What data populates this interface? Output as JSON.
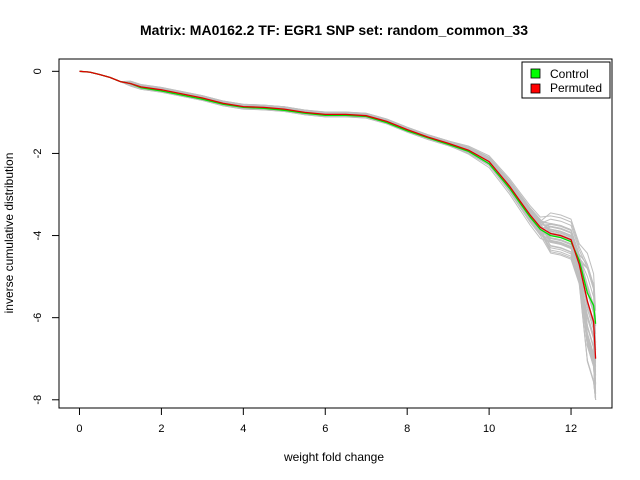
{
  "chart_data": {
    "type": "line",
    "title": "Matrix: MA0162.2 TF: EGR1 SNP set: random_common_33",
    "xlabel": "weight fold change",
    "ylabel": "inverse cumulative distribution",
    "xlim": [
      -0.5,
      13.0
    ],
    "ylim": [
      -8.2,
      0.3
    ],
    "x_ticks": [
      0,
      2,
      4,
      6,
      8,
      10,
      12
    ],
    "y_ticks": [
      0,
      -2,
      -4,
      -6,
      -8
    ],
    "x_tick_labels": [
      "0",
      "2",
      "4",
      "6",
      "8",
      "10",
      "12"
    ],
    "y_tick_labels": [
      "0",
      "-2",
      "-4",
      "-6",
      "-8"
    ],
    "grid": false,
    "legend_position": "top-right",
    "legend": [
      {
        "label": "Control",
        "color": "#00ff00"
      },
      {
        "label": "Permuted",
        "color": "#ff0000"
      }
    ],
    "series": [
      {
        "name": "Control",
        "color": "#00dd00",
        "x": [
          0,
          0.25,
          0.5,
          0.75,
          1.0,
          1.25,
          1.5,
          2.0,
          2.5,
          3.0,
          3.5,
          4.0,
          4.5,
          5.0,
          5.5,
          6.0,
          6.5,
          7.0,
          7.5,
          8.0,
          8.5,
          9.0,
          9.5,
          10.0,
          10.25,
          10.5,
          10.75,
          11.0,
          11.25,
          11.5,
          11.75,
          12.0,
          12.2,
          12.4,
          12.55,
          12.6
        ],
        "y": [
          0,
          -0.02,
          -0.08,
          -0.15,
          -0.25,
          -0.3,
          -0.4,
          -0.48,
          -0.58,
          -0.68,
          -0.8,
          -0.88,
          -0.9,
          -0.95,
          -1.02,
          -1.07,
          -1.07,
          -1.1,
          -1.25,
          -1.45,
          -1.62,
          -1.78,
          -1.95,
          -2.25,
          -2.55,
          -2.85,
          -3.2,
          -3.55,
          -3.85,
          -4.0,
          -4.05,
          -4.15,
          -4.6,
          -5.4,
          -5.7,
          -6.15
        ]
      },
      {
        "name": "Permuted",
        "color": "#dd0000",
        "x": [
          0,
          0.25,
          0.5,
          0.75,
          1.0,
          1.25,
          1.5,
          2.0,
          2.5,
          3.0,
          3.5,
          4.0,
          4.5,
          5.0,
          5.5,
          6.0,
          6.5,
          7.0,
          7.5,
          8.0,
          8.5,
          9.0,
          9.5,
          10.0,
          10.25,
          10.5,
          10.75,
          11.0,
          11.25,
          11.5,
          11.75,
          12.0,
          12.2,
          12.4,
          12.55,
          12.6
        ],
        "y": [
          0,
          -0.02,
          -0.08,
          -0.15,
          -0.25,
          -0.3,
          -0.38,
          -0.45,
          -0.55,
          -0.65,
          -0.78,
          -0.86,
          -0.88,
          -0.92,
          -1.0,
          -1.05,
          -1.05,
          -1.08,
          -1.22,
          -1.42,
          -1.6,
          -1.75,
          -1.92,
          -2.2,
          -2.5,
          -2.8,
          -3.15,
          -3.5,
          -3.8,
          -3.95,
          -4.0,
          -4.1,
          -4.7,
          -5.6,
          -6.1,
          -7.0
        ]
      }
    ],
    "background_series_count": 40,
    "background_series_color": "#bebebe"
  }
}
